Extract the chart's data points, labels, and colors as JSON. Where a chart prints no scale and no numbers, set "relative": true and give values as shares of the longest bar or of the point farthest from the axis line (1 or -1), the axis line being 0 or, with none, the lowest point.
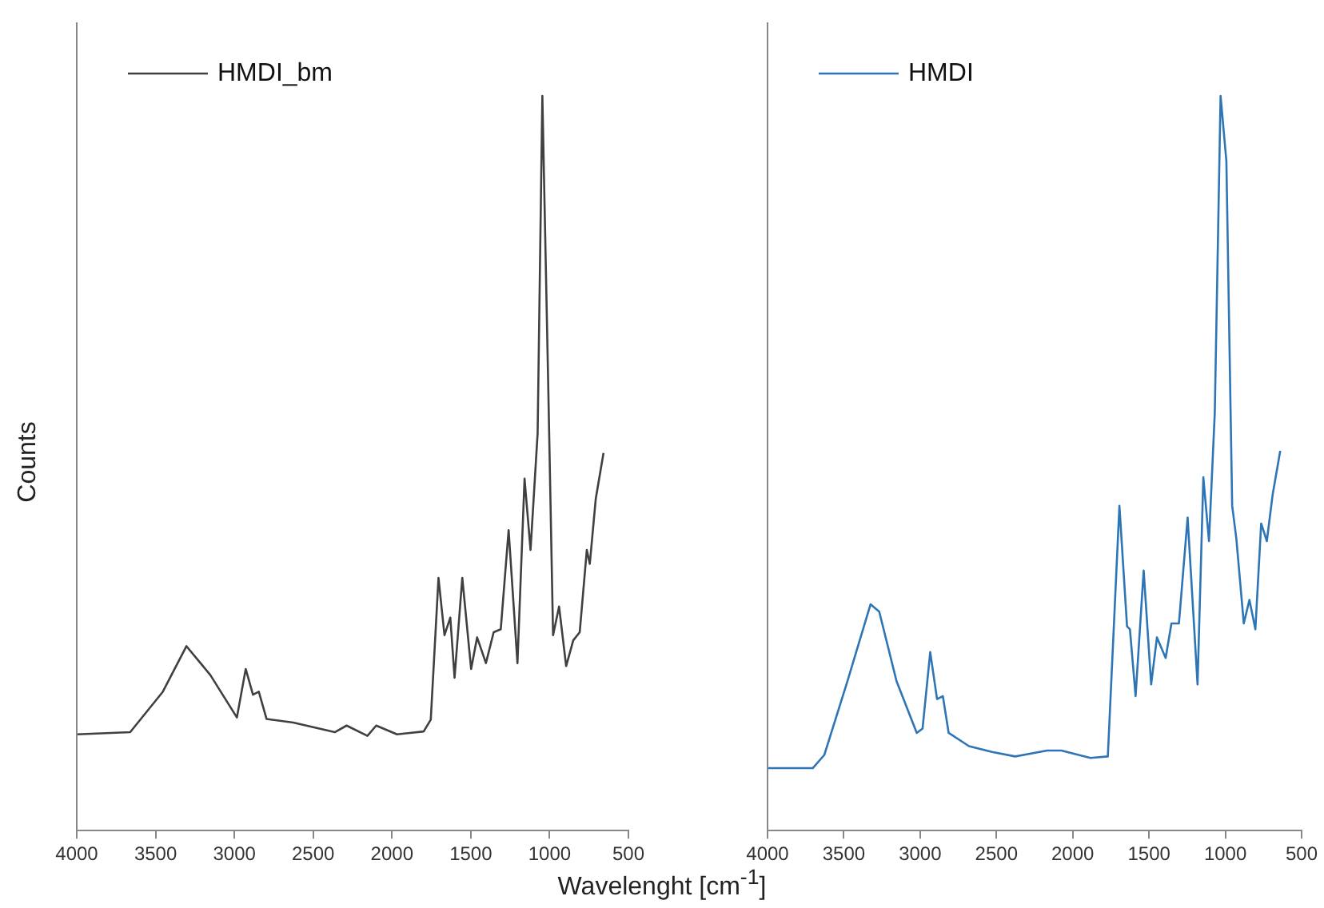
{
  "chart_data": [
    {
      "type": "line",
      "ylabel": "Counts",
      "xlabel": "Wavelenght [cm$^{-1}$]",
      "relative": true,
      "legend": "top left",
      "tick_labels": "x",
      "xlim": [
        4000,
        500
      ],
      "xticks": [
        4000,
        3500,
        3000,
        2500,
        2000,
        1500,
        1000,
        500
      ],
      "x": [
        4000,
        3661,
        3454,
        3304,
        3153,
        2984,
        2928,
        2882,
        2845,
        2796,
        2626,
        2363,
        2288,
        2156,
        2100,
        1968,
        1799,
        1754,
        1705,
        1667,
        1630,
        1603,
        1554,
        1498,
        1460,
        1404,
        1355,
        1310,
        1260,
        1204,
        1159,
        1121,
        1076,
        1046,
        1008,
        978,
        940,
        895,
        850,
        809,
        764,
        745,
        707,
        658
      ],
      "series": [
        {
          "name": "HMDI_bm",
          "color": "#404040",
          "values": [
            0.131,
            0.134,
            0.189,
            0.251,
            0.212,
            0.154,
            0.22,
            0.185,
            0.189,
            0.152,
            0.147,
            0.134,
            0.143,
            0.129,
            0.143,
            0.131,
            0.135,
            0.151,
            0.344,
            0.266,
            0.29,
            0.208,
            0.344,
            0.22,
            0.263,
            0.228,
            0.27,
            0.274,
            0.409,
            0.228,
            0.479,
            0.382,
            0.541,
            1.0,
            0.598,
            0.266,
            0.305,
            0.224,
            0.259,
            0.27,
            0.382,
            0.363,
            0.452,
            0.514
          ]
        }
      ]
    },
    {
      "type": "line",
      "relative": true,
      "legend": "top left",
      "tick_labels": "x",
      "xlim": [
        4000,
        500
      ],
      "xticks": [
        4000,
        3500,
        3000,
        2500,
        2000,
        1500,
        1000,
        500
      ],
      "x": [
        4000,
        3704,
        3628,
        3477,
        3325,
        3268,
        3154,
        3022,
        2984,
        2934,
        2889,
        2851,
        2813,
        2680,
        2529,
        2377,
        2168,
        2074,
        1884,
        1770,
        1694,
        1644,
        1625,
        1588,
        1535,
        1486,
        1448,
        1391,
        1353,
        1304,
        1247,
        1182,
        1144,
        1107,
        1069,
        1031,
        993,
        955,
        928,
        879,
        842,
        803,
        765,
        728,
        690,
        640
      ],
      "series": [
        {
          "name": "HMDI",
          "color": "#2e75b6",
          "values": [
            0.085,
            0.085,
            0.103,
            0.203,
            0.308,
            0.298,
            0.203,
            0.133,
            0.139,
            0.243,
            0.179,
            0.183,
            0.133,
            0.115,
            0.107,
            0.101,
            0.109,
            0.109,
            0.099,
            0.101,
            0.442,
            0.278,
            0.274,
            0.183,
            0.354,
            0.199,
            0.263,
            0.235,
            0.282,
            0.282,
            0.426,
            0.199,
            0.481,
            0.394,
            0.569,
            1.0,
            0.911,
            0.442,
            0.398,
            0.282,
            0.314,
            0.274,
            0.418,
            0.394,
            0.457,
            0.517
          ]
        }
      ]
    }
  ]
}
